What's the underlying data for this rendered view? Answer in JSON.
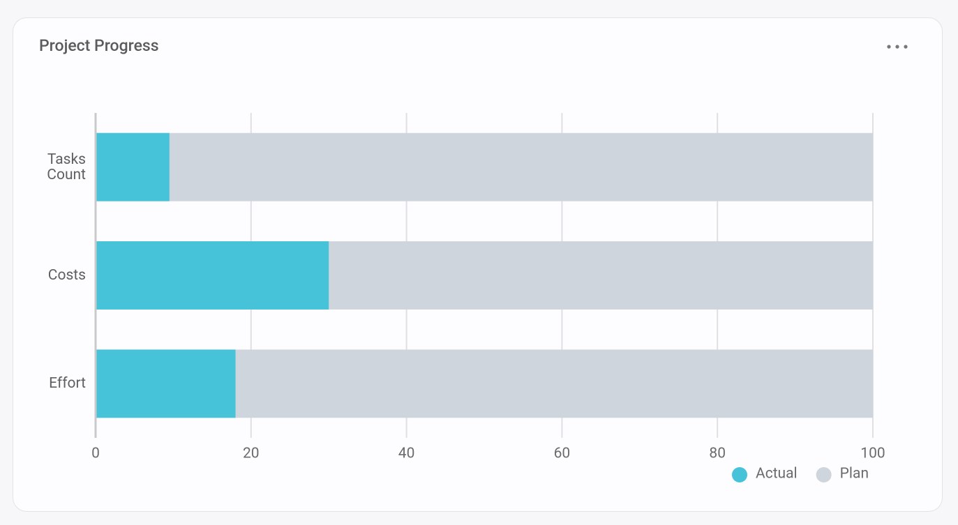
{
  "chart_data": {
    "type": "bar",
    "orientation": "horizontal",
    "overlap": true,
    "title": "Project Progress",
    "categories": [
      "Tasks Count",
      "Costs",
      "Effort"
    ],
    "series": [
      {
        "name": "Actual",
        "color": "#47c3d9",
        "values": [
          9.5,
          30,
          18
        ]
      },
      {
        "name": "Plan",
        "color": "#cfd5dc",
        "values": [
          100,
          100,
          100
        ]
      }
    ],
    "xlim": [
      0,
      100
    ],
    "xticks": [
      0,
      20,
      40,
      60,
      80,
      100
    ],
    "grid": true,
    "legend": "bottom-right"
  }
}
